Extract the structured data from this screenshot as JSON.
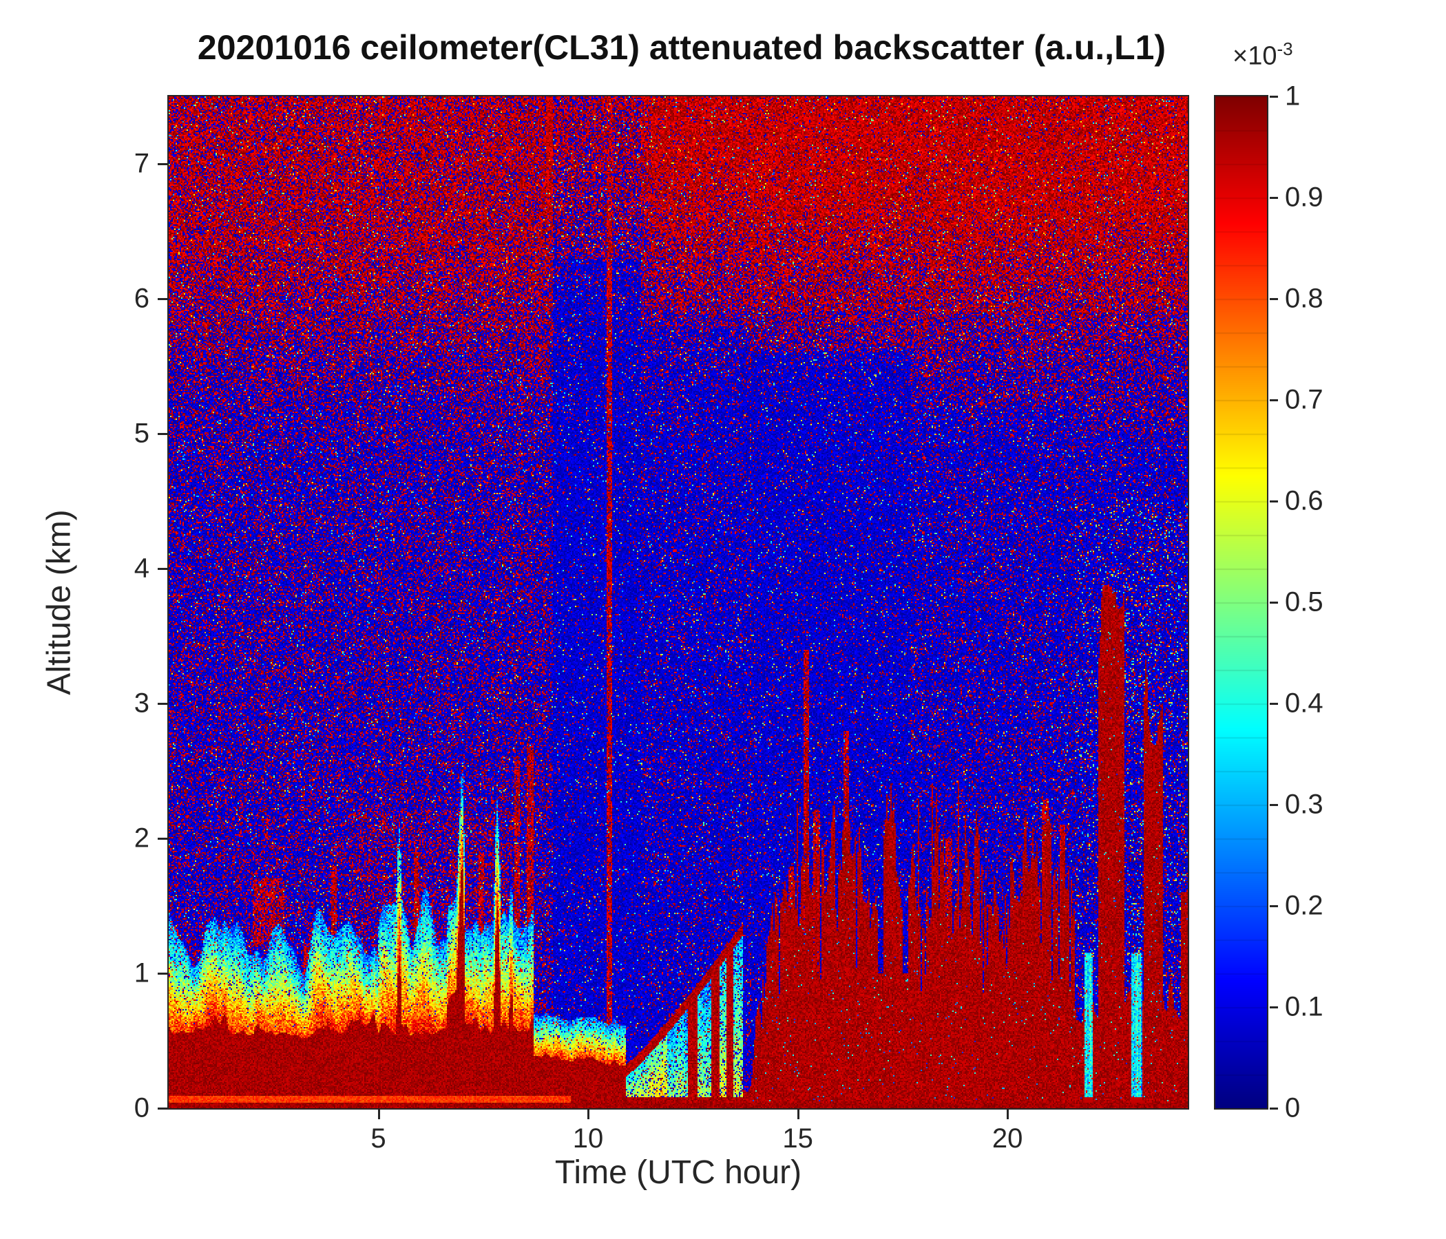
{
  "title": "20201016 ceilometer(CL31) attenuated backscatter (a.u.,L1)",
  "axes": {
    "x": {
      "label": "Time (UTC hour)",
      "ticks": [
        "5",
        "10",
        "15",
        "20"
      ]
    },
    "y": {
      "label": "Altitude (km)",
      "ticks": [
        "0",
        "1",
        "2",
        "3",
        "4",
        "5",
        "6",
        "7"
      ]
    }
  },
  "colorbar": {
    "scale_prefix": "×10",
    "scale_exponent": "-3",
    "ticks": [
      "0",
      "0.1",
      "0.2",
      "0.3",
      "0.4",
      "0.5",
      "0.6",
      "0.7",
      "0.8",
      "0.9",
      "1"
    ],
    "colormap": "jet"
  },
  "chart_data": {
    "type": "heatmap",
    "title": "20201016 ceilometer(CL31) attenuated backscatter (a.u.,L1)",
    "xlabel": "Time (UTC hour)",
    "ylabel": "Altitude (km)",
    "x_range_utc_hour": [
      0,
      24.3
    ],
    "y_range_km": [
      0,
      7.5
    ],
    "x_ticks": [
      5,
      10,
      15,
      20
    ],
    "y_ticks": [
      0,
      1,
      2,
      3,
      4,
      5,
      6,
      7
    ],
    "color_range_au": [
      0,
      0.001
    ],
    "color_scale_factor": "1e-3",
    "colorbar_ticks": [
      0,
      0.1,
      0.2,
      0.3,
      0.4,
      0.5,
      0.6,
      0.7,
      0.8,
      0.9,
      1
    ],
    "colormap": "jet",
    "grid": false,
    "features": [
      {
        "name": "surface-aerosol-layer",
        "time_utc": [
          0,
          9
        ],
        "altitude_km": [
          0,
          0.6
        ],
        "backscatter_au": "~1e-3 (saturated dark red)",
        "description": "Strong near-surface backscatter layer ~0.5 km deep through the morning, with a brighter red stripe at the very bottom"
      },
      {
        "name": "aerosol-transition-band",
        "time_utc": [
          0,
          9
        ],
        "altitude_km": [
          0.5,
          1.4
        ],
        "backscatter_au": "0.3-0.7e-3",
        "description": "Yellow-to-cyan gradient above the surface layer; intermittent red plumes to ~1.5-2.7 km between 05-09 UTC and an elevated red patch near 1.3-1.7 km around 02-03 UTC"
      },
      {
        "name": "clean-column",
        "time_utc": [
          9.2,
          11.3
        ],
        "altitude_km": [
          0.4,
          7.5
        ],
        "backscatter_au": "<0.1e-3",
        "description": "Dark blue low-backscatter column with strongly reduced red speckle"
      },
      {
        "name": "rising-boundary-layer",
        "time_utc": [
          10.9,
          13.7
        ],
        "altitude_km": [
          0.3,
          1.3
        ],
        "description": "Thin red backscatter line rising from ~0.3 km to ~1.3 km; shallow cyan/green layer below it near 11-12.5 UTC with a few full red stripes near 12.5 and 13 UTC"
      },
      {
        "name": "cloud-precipitation-deck",
        "time_utc": [
          13.7,
          21.6
        ],
        "altitude_km": [
          0,
          2.3
        ],
        "backscatter_au": ">=1e-3 (saturated)",
        "description": "Optically thick cloud/precipitation deck with spiky tops between ~1 and 2.3 km; signal fully attenuated (deep blue) above the deck, most pronounced 14-17.5 UTC, with isolated red columns to ~3.4 km near 15-16 UTC"
      },
      {
        "name": "evening-deep-columns",
        "time_utc": [
          21.6,
          24.3
        ],
        "altitude_km": [
          0,
          3.9
        ],
        "description": "Tall saturated red columns reaching ~3.5-3.9 km near 22.2-22.8 and 23.3-23.7 UTC, separated by narrow cyan low-backscatter gaps near 22 and 23 UTC"
      },
      {
        "name": "high-altitude-noise",
        "time_utc": [
          0,
          24.3
        ],
        "altitude_km": [
          5,
          7.5
        ],
        "description": "Dense dark-red noise speckle over blue background increasing with altitude (low signal-to-noise), heaviest in the upper-right part of the plot"
      }
    ]
  }
}
